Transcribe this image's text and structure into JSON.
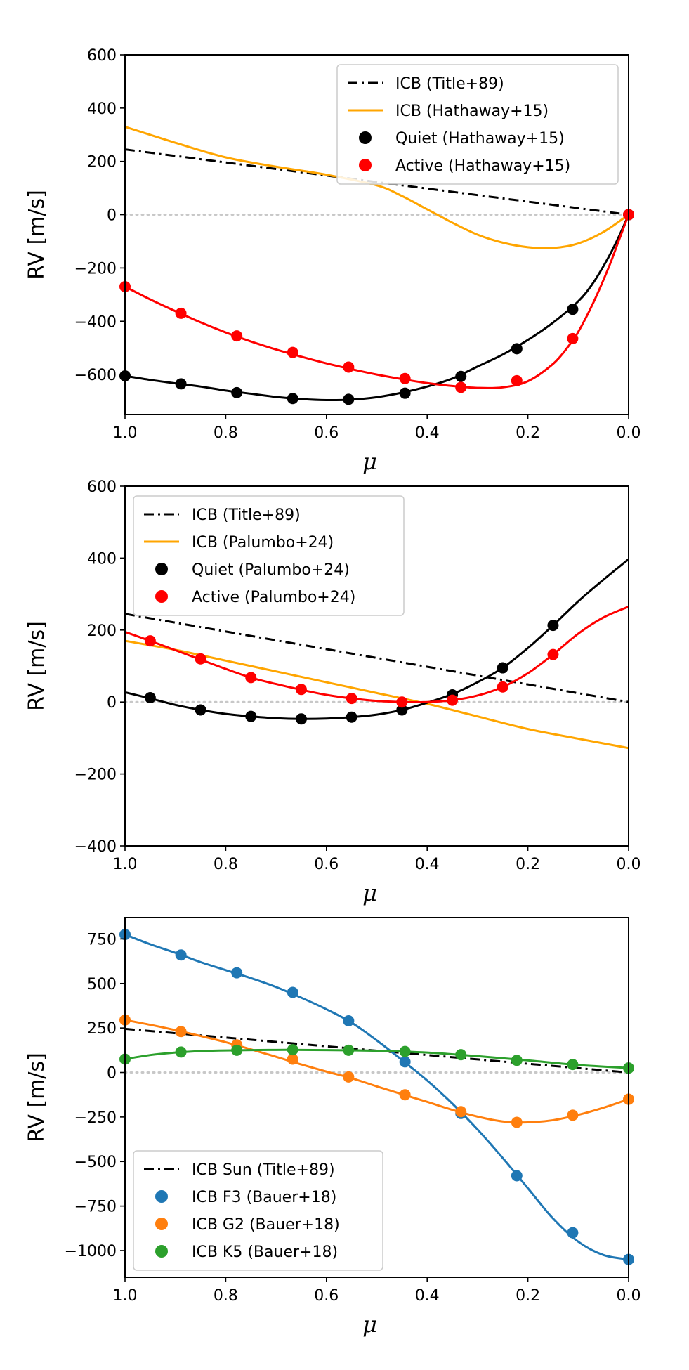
{
  "chart_data": [
    {
      "type": "line",
      "xlabel": "μ",
      "ylabel": "RV [m/s]",
      "xlim": [
        1.0,
        0.0
      ],
      "ylim": [
        -750,
        600
      ],
      "xticks": [
        "1.0",
        "0.8",
        "0.6",
        "0.4",
        "0.2",
        "0.0"
      ],
      "xtick_values": [
        1.0,
        0.8,
        0.6,
        0.4,
        0.2,
        0.0
      ],
      "yticks": [
        "600",
        "400",
        "200",
        "0",
        "−200",
        "−400",
        "−600"
      ],
      "ytick_values": [
        600,
        400,
        200,
        0,
        -200,
        -400,
        -600
      ],
      "zero_line": true,
      "legend_position": "top-right",
      "legend_order": [
        "ICB (Title+89)",
        "ICB (Hathaway+15)",
        "Quiet (Hathaway+15)",
        "Active (Hathaway+15)"
      ],
      "series": [
        {
          "name": "ICB (Title+89)",
          "kind": "line",
          "style": "dashdot",
          "color": "#000000",
          "x": [
            1.0,
            0.0
          ],
          "y": [
            245,
            0
          ]
        },
        {
          "name": "ICB (Hathaway+15)",
          "kind": "line",
          "style": "solid",
          "color": "#ffa500",
          "x": [
            1.0,
            0.9,
            0.8,
            0.7,
            0.6,
            0.5,
            0.45,
            0.4,
            0.35,
            0.3,
            0.25,
            0.2,
            0.15,
            0.1,
            0.05,
            0.0
          ],
          "y": [
            330,
            270,
            215,
            180,
            150,
            110,
            70,
            20,
            -30,
            -75,
            -105,
            -122,
            -125,
            -108,
            -65,
            0
          ]
        },
        {
          "name": "Quiet (Hathaway+15)",
          "kind": "scatter+fit",
          "color": "#000000",
          "x": [
            1.0,
            0.889,
            0.778,
            0.667,
            0.556,
            0.444,
            0.333,
            0.222,
            0.111,
            0.0
          ],
          "y": [
            -605,
            -635,
            -668,
            -690,
            -693,
            -670,
            -607,
            -503,
            -355,
            0
          ],
          "fit_x": [
            1.0,
            0.95,
            0.9,
            0.85,
            0.8,
            0.75,
            0.7,
            0.65,
            0.6,
            0.55,
            0.5,
            0.45,
            0.4,
            0.35,
            0.3,
            0.25,
            0.2,
            0.15,
            0.1,
            0.07,
            0.04,
            0.02,
            0.0
          ],
          "fit_y": [
            -605,
            -620,
            -633,
            -645,
            -660,
            -672,
            -684,
            -692,
            -696,
            -694,
            -685,
            -668,
            -645,
            -615,
            -570,
            -525,
            -470,
            -405,
            -325,
            -255,
            -160,
            -85,
            0
          ]
        },
        {
          "name": "Active (Hathaway+15)",
          "kind": "scatter+fit",
          "color": "#ff0000",
          "x": [
            1.0,
            0.889,
            0.778,
            0.667,
            0.556,
            0.444,
            0.333,
            0.222,
            0.111,
            0.0
          ],
          "y": [
            -270,
            -370,
            -455,
            -517,
            -572,
            -615,
            -648,
            -623,
            -465,
            0
          ],
          "fit_x": [
            1.0,
            0.95,
            0.9,
            0.85,
            0.8,
            0.75,
            0.7,
            0.65,
            0.6,
            0.55,
            0.5,
            0.45,
            0.4,
            0.35,
            0.3,
            0.25,
            0.2,
            0.15,
            0.12,
            0.1,
            0.07,
            0.04,
            0.02,
            0.0
          ],
          "fit_y": [
            -270,
            -318,
            -362,
            -404,
            -442,
            -476,
            -506,
            -533,
            -558,
            -580,
            -600,
            -617,
            -632,
            -643,
            -650,
            -648,
            -625,
            -560,
            -495,
            -440,
            -330,
            -200,
            -100,
            0
          ]
        }
      ]
    },
    {
      "type": "line",
      "xlabel": "μ",
      "ylabel": "RV [m/s]",
      "xlim": [
        1.0,
        0.0
      ],
      "ylim": [
        -400,
        600
      ],
      "xticks": [
        "1.0",
        "0.8",
        "0.6",
        "0.4",
        "0.2",
        "0.0"
      ],
      "xtick_values": [
        1.0,
        0.8,
        0.6,
        0.4,
        0.2,
        0.0
      ],
      "yticks": [
        "600",
        "400",
        "200",
        "0",
        "−200",
        "−400"
      ],
      "ytick_values": [
        600,
        400,
        200,
        0,
        -200,
        -400
      ],
      "zero_line": true,
      "legend_position": "top-left",
      "legend_order": [
        "ICB (Title+89)",
        "ICB (Palumbo+24)",
        "Quiet (Palumbo+24)",
        "Active (Palumbo+24)"
      ],
      "series": [
        {
          "name": "ICB (Title+89)",
          "kind": "line",
          "style": "dashdot",
          "color": "#000000",
          "x": [
            1.0,
            0.0
          ],
          "y": [
            245,
            0
          ]
        },
        {
          "name": "ICB (Palumbo+24)",
          "kind": "line",
          "style": "solid",
          "color": "#ffa500",
          "x": [
            1.0,
            0.9,
            0.8,
            0.7,
            0.6,
            0.5,
            0.4,
            0.3,
            0.2,
            0.1,
            0.0
          ],
          "y": [
            170,
            145,
            115,
            85,
            55,
            25,
            -5,
            -40,
            -75,
            -102,
            -128
          ]
        },
        {
          "name": "Quiet (Palumbo+24)",
          "kind": "scatter+fit",
          "color": "#000000",
          "x": [
            0.95,
            0.85,
            0.75,
            0.65,
            0.55,
            0.45,
            0.35,
            0.25,
            0.15
          ],
          "y": [
            12,
            -22,
            -40,
            -47,
            -42,
            -22,
            20,
            95,
            213
          ],
          "fit_x": [
            1.0,
            0.95,
            0.9,
            0.85,
            0.8,
            0.75,
            0.7,
            0.65,
            0.6,
            0.55,
            0.5,
            0.45,
            0.4,
            0.35,
            0.3,
            0.25,
            0.2,
            0.15,
            0.1,
            0.05,
            0.0
          ],
          "fit_y": [
            27,
            10,
            -8,
            -22,
            -33,
            -40,
            -45,
            -47,
            -46,
            -42,
            -35,
            -22,
            -2,
            22,
            55,
            95,
            150,
            213,
            280,
            340,
            397
          ]
        },
        {
          "name": "Active (Palumbo+24)",
          "kind": "scatter+fit",
          "color": "#ff0000",
          "x": [
            0.95,
            0.85,
            0.75,
            0.65,
            0.55,
            0.45,
            0.35,
            0.25,
            0.15
          ],
          "y": [
            170,
            120,
            68,
            35,
            10,
            0,
            5,
            42,
            132
          ],
          "fit_x": [
            1.0,
            0.95,
            0.9,
            0.85,
            0.8,
            0.75,
            0.7,
            0.65,
            0.6,
            0.55,
            0.5,
            0.45,
            0.4,
            0.35,
            0.3,
            0.25,
            0.2,
            0.15,
            0.1,
            0.05,
            0.0
          ],
          "fit_y": [
            195,
            170,
            144,
            118,
            92,
            68,
            50,
            34,
            20,
            10,
            3,
            0,
            0,
            5,
            18,
            42,
            80,
            132,
            190,
            235,
            265
          ]
        }
      ]
    },
    {
      "type": "line",
      "xlabel": "μ",
      "ylabel": "RV [m/s]",
      "xlim": [
        1.0,
        0.0
      ],
      "ylim": [
        -1150,
        870
      ],
      "xticks": [
        "1.0",
        "0.8",
        "0.6",
        "0.4",
        "0.2",
        "0.0"
      ],
      "xtick_values": [
        1.0,
        0.8,
        0.6,
        0.4,
        0.2,
        0.0
      ],
      "yticks": [
        "750",
        "500",
        "250",
        "0",
        "−250",
        "−500",
        "−750",
        "−1000"
      ],
      "ytick_values": [
        750,
        500,
        250,
        0,
        -250,
        -500,
        -750,
        -1000
      ],
      "zero_line": true,
      "legend_position": "bottom-left",
      "legend_order": [
        "ICB Sun (Title+89)",
        "ICB F3 (Bauer+18)",
        "ICB G2 (Bauer+18)",
        "ICB K5 (Bauer+18)"
      ],
      "series": [
        {
          "name": "ICB Sun (Title+89)",
          "kind": "line",
          "style": "dashdot",
          "color": "#000000",
          "x": [
            1.0,
            0.0
          ],
          "y": [
            245,
            0
          ]
        },
        {
          "name": "ICB F3 (Bauer+18)",
          "kind": "scatter+fit",
          "color": "#1f77b4",
          "x": [
            1.0,
            0.889,
            0.778,
            0.667,
            0.556,
            0.444,
            0.333,
            0.222,
            0.111,
            0.0
          ],
          "y": [
            775,
            660,
            560,
            450,
            290,
            60,
            -230,
            -580,
            -900,
            -1050
          ],
          "fit_x": [
            1.0,
            0.95,
            0.9,
            0.85,
            0.8,
            0.75,
            0.7,
            0.65,
            0.6,
            0.55,
            0.5,
            0.45,
            0.4,
            0.35,
            0.3,
            0.25,
            0.2,
            0.15,
            0.1,
            0.05,
            0.0
          ],
          "fit_y": [
            775,
            720,
            672,
            620,
            575,
            530,
            480,
            420,
            355,
            280,
            180,
            70,
            -45,
            -175,
            -320,
            -480,
            -650,
            -820,
            -950,
            -1025,
            -1050
          ]
        },
        {
          "name": "ICB G2 (Bauer+18)",
          "kind": "scatter+fit",
          "color": "#ff7f0e",
          "x": [
            1.0,
            0.889,
            0.778,
            0.667,
            0.556,
            0.444,
            0.333,
            0.222,
            0.111,
            0.0
          ],
          "y": [
            295,
            230,
            155,
            75,
            -25,
            -125,
            -220,
            -280,
            -240,
            -150
          ],
          "fit_x": [
            1.0,
            0.95,
            0.9,
            0.85,
            0.8,
            0.75,
            0.7,
            0.65,
            0.6,
            0.55,
            0.5,
            0.45,
            0.4,
            0.35,
            0.3,
            0.25,
            0.2,
            0.15,
            0.1,
            0.05,
            0.0
          ],
          "fit_y": [
            295,
            268,
            238,
            205,
            170,
            130,
            88,
            45,
            5,
            -32,
            -78,
            -122,
            -165,
            -210,
            -248,
            -275,
            -280,
            -268,
            -238,
            -198,
            -150
          ]
        },
        {
          "name": "ICB K5 (Bauer+18)",
          "kind": "scatter+fit",
          "color": "#2ca02c",
          "x": [
            1.0,
            0.889,
            0.778,
            0.667,
            0.556,
            0.444,
            0.333,
            0.222,
            0.111,
            0.0
          ],
          "y": [
            75,
            115,
            125,
            128,
            125,
            118,
            100,
            68,
            45,
            25
          ],
          "fit_x": [
            1.0,
            0.95,
            0.9,
            0.85,
            0.8,
            0.7,
            0.6,
            0.5,
            0.4,
            0.3,
            0.2,
            0.1,
            0.0
          ],
          "fit_y": [
            75,
            98,
            112,
            120,
            124,
            127,
            126,
            122,
            112,
            92,
            68,
            42,
            25
          ]
        }
      ]
    }
  ]
}
